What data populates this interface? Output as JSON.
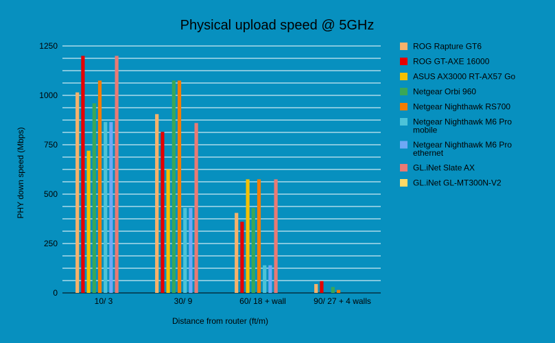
{
  "chart_data": {
    "type": "bar",
    "title": "Physical upload speed @ 5GHz",
    "xlabel": "Distance from router (ft/m)",
    "ylabel": "PHY down speed (Mbps)",
    "ylim": [
      0,
      1250
    ],
    "yticks": [
      0,
      250,
      500,
      750,
      1000,
      1250
    ],
    "ygrid_step": 62.5,
    "grid": true,
    "legend_position": "right",
    "categories": [
      "10/ 3",
      "30/ 9",
      "60/ 18 + wall",
      "90/ 27 + 4 walls"
    ],
    "series": [
      {
        "name": "ROG Rapture GT6",
        "color": "#f6b26b",
        "values": [
          1015,
          905,
          405,
          45
        ]
      },
      {
        "name": "ROG GT-AXE 16000",
        "color": "#e60000",
        "values": [
          1200,
          815,
          360,
          60
        ]
      },
      {
        "name": "ASUS AX3000 RT-AX57 Go",
        "color": "#f4c000",
        "values": [
          720,
          625,
          575,
          0
        ]
      },
      {
        "name": "Netgear Orbi 960",
        "color": "#3aa757",
        "values": [
          960,
          1075,
          430,
          30
        ]
      },
      {
        "name": "Netgear Nighthawk RS700",
        "color": "#f57c00",
        "values": [
          1075,
          1075,
          575,
          15
        ]
      },
      {
        "name": "Netgear Nighthawk M6 Pro mobile",
        "color": "#4cc3d9",
        "values": [
          865,
          430,
          140,
          0
        ]
      },
      {
        "name": "Netgear Nighthawk M6 Pro ethernet",
        "color": "#6fa8f5",
        "values": [
          865,
          430,
          140,
          0
        ]
      },
      {
        "name": "GL.iNet Slate AX",
        "color": "#ea7a74",
        "values": [
          1200,
          860,
          575,
          0
        ]
      },
      {
        "name": "GL.iNet GL-MT300N-V2",
        "color": "#ffd966",
        "values": [
          0,
          0,
          0,
          0
        ]
      }
    ]
  }
}
